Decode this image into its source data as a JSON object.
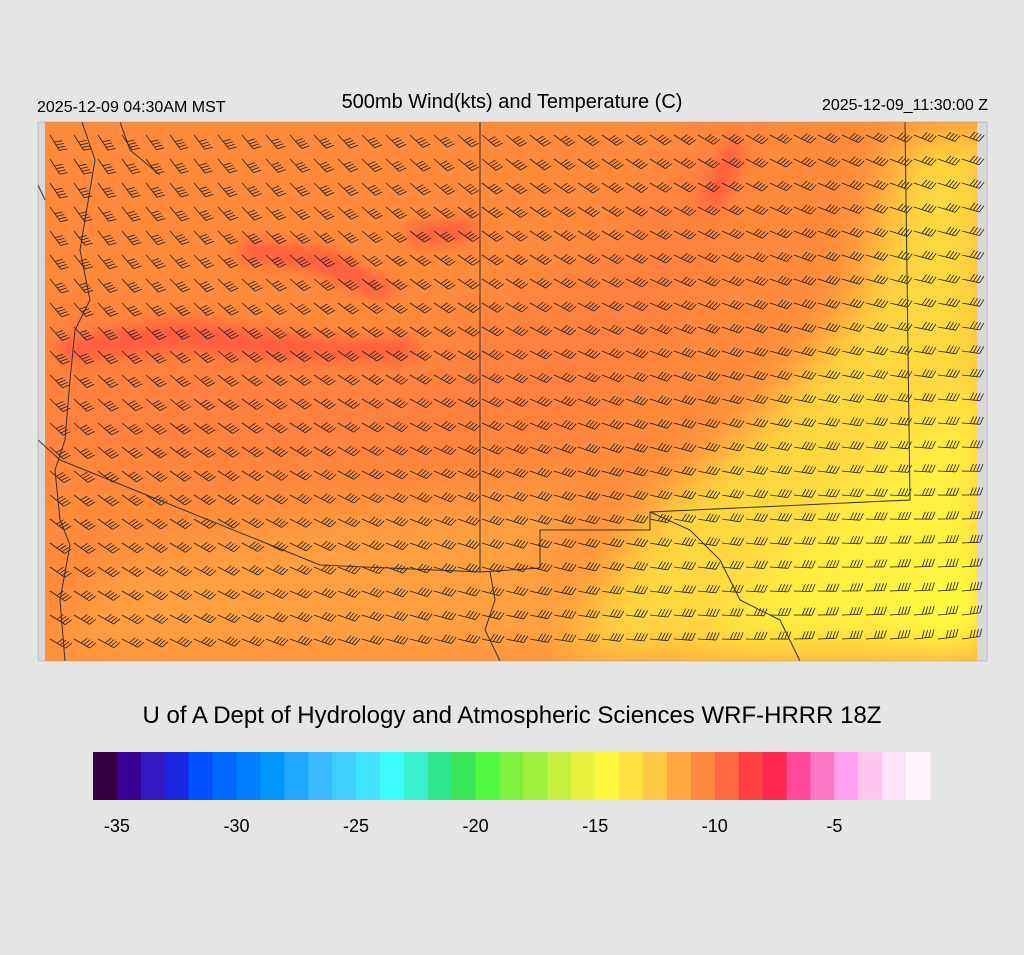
{
  "header": {
    "local_time": "2025-12-09 04:30AM MST",
    "title": "500mb Wind(kts) and Temperature (C)",
    "valid_time": "2025-12-09_11:30:00 Z"
  },
  "credit": "U of A Dept of Hydrology and Atmospheric Sciences WRF-HRRR 18Z",
  "colorbar": {
    "range": [
      -36,
      -1
    ],
    "ticks": [
      -35,
      -30,
      -25,
      -20,
      -15,
      -10,
      -5
    ],
    "colors": [
      "#350040",
      "#3a0096",
      "#3218c0",
      "#1828e0",
      "#0050ff",
      "#0068ff",
      "#0080ff",
      "#0098ff",
      "#20a8ff",
      "#38bcff",
      "#40d0ff",
      "#40e4ff",
      "#40fcff",
      "#38f0d0",
      "#30e890",
      "#38e858",
      "#50f840",
      "#80f040",
      "#a0f040",
      "#c8f040",
      "#e8f040",
      "#fff840",
      "#ffe040",
      "#ffc840",
      "#ffa840",
      "#ff8840",
      "#ff6840",
      "#ff4040",
      "#ff2850",
      "#ff4898",
      "#ff78c8",
      "#ffa0f0",
      "#ffc4f0",
      "#ffe4f8",
      "#fff4fc"
    ]
  }
}
